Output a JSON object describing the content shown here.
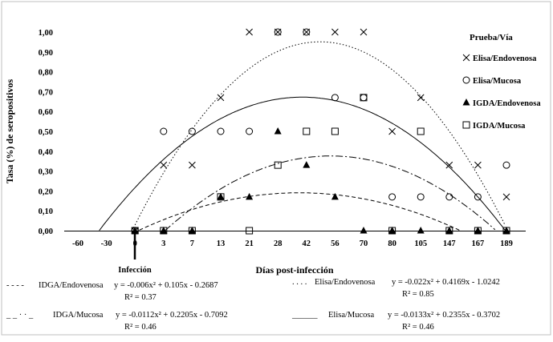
{
  "chart_data": {
    "type": "scatter",
    "title": "",
    "xlabel": "Días post-infección",
    "ylabel": "Tasa (%) de seropositivos",
    "x_ticks": [
      "-60",
      "-30",
      "0",
      "3",
      "7",
      "13",
      "21",
      "28",
      "42",
      "56",
      "70",
      "80",
      "105",
      "147",
      "167",
      "189"
    ],
    "y_ticks": [
      "0,00",
      "0,10",
      "0,20",
      "0,30",
      "0,40",
      "0,50",
      "0,60",
      "0,70",
      "0,80",
      "0,90",
      "1,00"
    ],
    "ylim": [
      0,
      1
    ],
    "infection_label": "Infección",
    "legend_title": "Prueba/Vía",
    "series": [
      {
        "name": "Elisa/Endovenosa",
        "marker": "x",
        "x": [
          "0",
          "3",
          "7",
          "13",
          "21",
          "28",
          "42",
          "56",
          "70",
          "80",
          "105",
          "147",
          "167",
          "189"
        ],
        "values": [
          0,
          0.33,
          0.33,
          0.67,
          1.0,
          1.0,
          1.0,
          1.0,
          1.0,
          0.5,
          0.67,
          0.33,
          0.33,
          0.17
        ]
      },
      {
        "name": "Elisa/Mucosa",
        "marker": "circle",
        "x": [
          "0",
          "3",
          "7",
          "13",
          "21",
          "28",
          "42",
          "56",
          "70",
          "80",
          "105",
          "147",
          "167",
          "189"
        ],
        "values": [
          0,
          0.5,
          0.5,
          0.5,
          0.5,
          1.0,
          1.0,
          0.67,
          0.67,
          0.17,
          0.17,
          0.17,
          0.17,
          0.33
        ]
      },
      {
        "name": "IGDA/Endovenosa",
        "marker": "triangle",
        "x": [
          "0",
          "3",
          "7",
          "13",
          "21",
          "28",
          "42",
          "56",
          "70",
          "80",
          "105",
          "147",
          "167",
          "189"
        ],
        "values": [
          0,
          0,
          0,
          0.17,
          0.17,
          0.5,
          0.33,
          0.17,
          0,
          0,
          0,
          0,
          0,
          0
        ]
      },
      {
        "name": "IGDA/Mucosa",
        "marker": "square",
        "x": [
          "0",
          "3",
          "7",
          "13",
          "21",
          "28",
          "42",
          "56",
          "70",
          "80",
          "105",
          "147",
          "167",
          "189"
        ],
        "values": [
          0,
          0,
          0,
          0.17,
          0,
          0.33,
          0.5,
          0.5,
          0.67,
          0,
          0.5,
          0,
          0,
          0
        ]
      }
    ],
    "trendlines": [
      {
        "label": "IDGA/Endovenosa",
        "dash": "short",
        "equation": "y = -0.006x² + 0.105x - 0.2687",
        "r2": "R² = 0.37",
        "coef": [
          -0.006,
          0.105,
          -0.2687
        ]
      },
      {
        "label": "Elisa/Endovenosa",
        "dash": "dotted",
        "equation": "y = -0.022x² + 0.4169x - 1.0242",
        "r2": "R² = 0.85",
        "coef": [
          -0.022,
          0.4169,
          -1.0242
        ]
      },
      {
        "label": "IDGA/Mucosa",
        "dash": "dashdot",
        "equation": "y = -0.0112x² + 0.2205x - 0.7092",
        "r2": "R² = 0.46",
        "coef": [
          -0.0112,
          0.2205,
          -0.7092
        ]
      },
      {
        "label": "Elisa/Mucosa",
        "dash": "solid",
        "equation": "y = -0.0133x² + 0.2355x - 0.3702",
        "r2": "R² = 0.46",
        "coef": [
          -0.0133,
          0.2355,
          -0.3702
        ]
      }
    ],
    "legend_placement": "right",
    "grid": false,
    "colors": {
      "marker": "#000000",
      "line": "#000000",
      "frame": "#bfbfbf"
    }
  }
}
